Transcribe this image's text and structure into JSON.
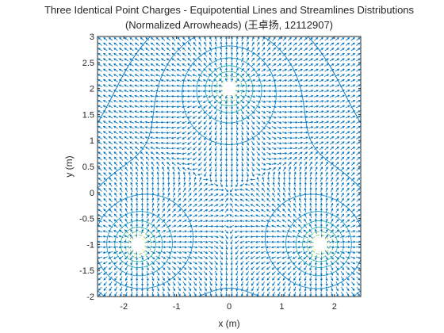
{
  "chart_data": {
    "type": "contour+quiver",
    "title_line1": "Three Identical Point Charges - Equipotential Lines and Streamlines Distributions",
    "title_line2": "(Normalized Arrowheads) (王卓扬, 12112907)",
    "xlabel": "x (m)",
    "ylabel": "y (m)",
    "xlim": [
      -2.5,
      2.5
    ],
    "ylim": [
      -2,
      3
    ],
    "xticks": [
      -2,
      -1,
      0,
      1,
      2
    ],
    "xtick_labels": [
      "-2",
      "-1",
      "0",
      "1",
      "2"
    ],
    "yticks": [
      -2,
      -1.5,
      -1,
      -0.5,
      0,
      0.5,
      1,
      1.5,
      2,
      2.5,
      3
    ],
    "ytick_labels": [
      "-2",
      "-1.5",
      "-1",
      "-0.5",
      "0",
      "0.5",
      "1",
      "1.5",
      "2",
      "2.5",
      "3"
    ],
    "charges": [
      {
        "x": 0,
        "y": 2,
        "q": 1
      },
      {
        "x": -1.732,
        "y": -1,
        "q": 1
      },
      {
        "x": 1.732,
        "y": -1,
        "q": 1
      }
    ],
    "contour_levels": [
      1.0,
      1.3,
      1.7,
      2.2,
      2.8,
      3.6,
      4.6,
      6.0,
      8.0,
      11.0,
      16.0
    ],
    "contour_colors": [
      "#0072bd",
      "#1080c8",
      "#1b8ccc",
      "#24a0c5",
      "#2cb3b0",
      "#40bf95",
      "#62c77a",
      "#8bcb5c",
      "#b3c63c",
      "#d9c52a",
      "#f5e21d"
    ],
    "quiver_color": "#0072bd",
    "grid": false
  }
}
